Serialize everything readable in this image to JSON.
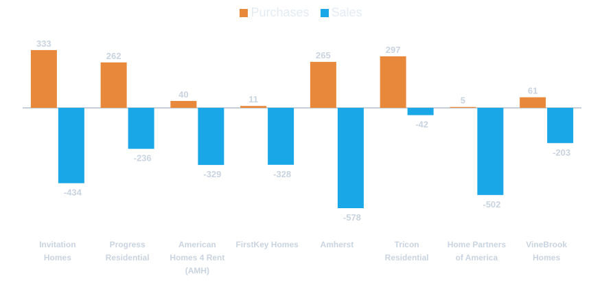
{
  "chart_data": {
    "type": "bar",
    "title": "",
    "xlabel": "",
    "ylabel": "",
    "categories": [
      [
        "Invitation",
        "Homes"
      ],
      [
        "Progress",
        "Residential"
      ],
      [
        "American",
        "Homes 4 Rent",
        "(AMH)"
      ],
      [
        "FirstKey Homes"
      ],
      [
        "Amherst"
      ],
      [
        "Tricon",
        "Residential"
      ],
      [
        "Home Partners",
        "of America"
      ],
      [
        "VineBrook",
        "Homes"
      ]
    ],
    "series": [
      {
        "name": "Purchases",
        "color": "#e8883a",
        "values": [
          333,
          262,
          40,
          11,
          265,
          297,
          5,
          61
        ],
        "labels": [
          "333",
          "262",
          "40",
          "11",
          "265",
          "297",
          "5",
          "61"
        ]
      },
      {
        "name": "Sales",
        "color": "#1aa7e8",
        "values": [
          -434,
          -236,
          -329,
          -328,
          -578,
          -42,
          -502,
          -203
        ],
        "labels": [
          "-434",
          "-236",
          "-329",
          "-328",
          "-578",
          "-42",
          "-502",
          "-203"
        ]
      }
    ],
    "ylim": [
      -600,
      350
    ],
    "grid": false,
    "legend_position": "top-center"
  }
}
